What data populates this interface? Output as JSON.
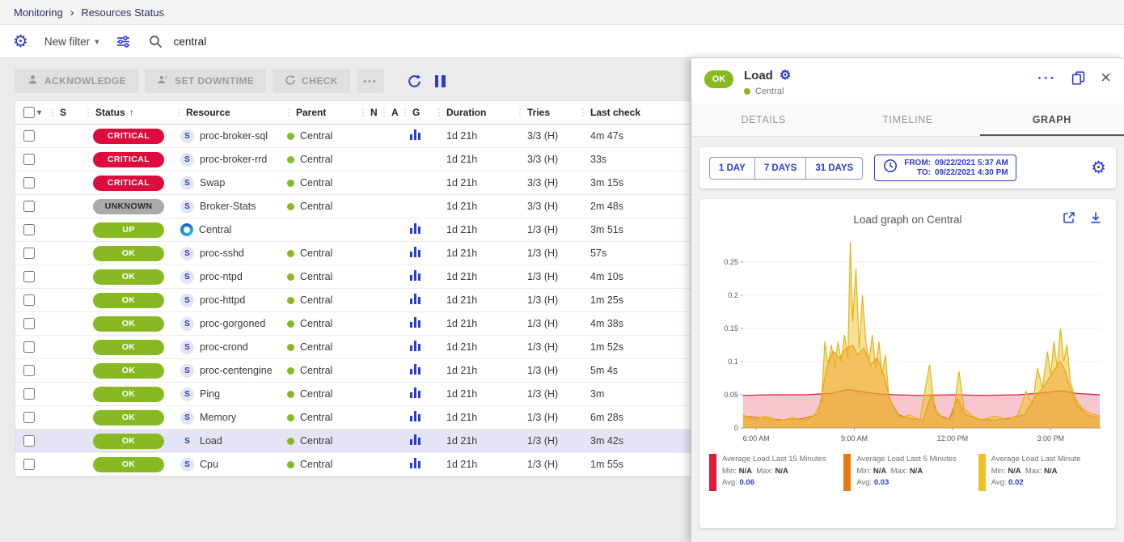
{
  "breadcrumb": {
    "section": "Monitoring",
    "page": "Resources Status"
  },
  "filter_bar": {
    "new_filter_label": "New filter",
    "search_value": "central"
  },
  "toolbar": {
    "acknowledge_label": "ACKNOWLEDGE",
    "set_downtime_label": "SET DOWNTIME",
    "check_label": "CHECK",
    "more_label": "···"
  },
  "colors": {
    "accent": "#2c3ccc",
    "ok_green": "#88b922",
    "critical_red": "#e00b3d",
    "unknown_gray": "#aaaaaa",
    "selected_row": "#e4e4f6"
  },
  "table": {
    "columns": [
      {
        "label": "S"
      },
      {
        "label": "Status",
        "sorted": true
      },
      {
        "label": "Resource"
      },
      {
        "label": "Parent"
      },
      {
        "label": "N"
      },
      {
        "label": "A"
      },
      {
        "label": "G"
      },
      {
        "label": "Duration"
      },
      {
        "label": "Tries"
      },
      {
        "label": "Last check"
      }
    ],
    "rows": [
      {
        "status": "CRITICAL",
        "status_type": "critical",
        "resource_type": "service",
        "resource": "proc-broker-sql",
        "parent": "Central",
        "graph": true,
        "duration": "1d 21h",
        "tries": "3/3 (H)",
        "last_check": "4m 47s",
        "selected": false
      },
      {
        "status": "CRITICAL",
        "status_type": "critical",
        "resource_type": "service",
        "resource": "proc-broker-rrd",
        "parent": "Central",
        "graph": false,
        "duration": "1d 21h",
        "tries": "3/3 (H)",
        "last_check": "33s",
        "selected": false
      },
      {
        "status": "CRITICAL",
        "status_type": "critical",
        "resource_type": "service",
        "resource": "Swap",
        "parent": "Central",
        "graph": false,
        "duration": "1d 21h",
        "tries": "3/3 (H)",
        "last_check": "3m 15s",
        "selected": false
      },
      {
        "status": "UNKNOWN",
        "status_type": "unknown",
        "resource_type": "service",
        "resource": "Broker-Stats",
        "parent": "Central",
        "graph": false,
        "duration": "1d 21h",
        "tries": "3/3 (H)",
        "last_check": "2m 48s",
        "selected": false
      },
      {
        "status": "UP",
        "status_type": "up",
        "resource_type": "host",
        "resource": "Central",
        "parent": "",
        "graph": true,
        "duration": "1d 21h",
        "tries": "1/3 (H)",
        "last_check": "3m 51s",
        "selected": false
      },
      {
        "status": "OK",
        "status_type": "ok",
        "resource_type": "service",
        "resource": "proc-sshd",
        "parent": "Central",
        "graph": true,
        "duration": "1d 21h",
        "tries": "1/3 (H)",
        "last_check": "57s",
        "selected": false
      },
      {
        "status": "OK",
        "status_type": "ok",
        "resource_type": "service",
        "resource": "proc-ntpd",
        "parent": "Central",
        "graph": true,
        "duration": "1d 21h",
        "tries": "1/3 (H)",
        "last_check": "4m 10s",
        "selected": false
      },
      {
        "status": "OK",
        "status_type": "ok",
        "resource_type": "service",
        "resource": "proc-httpd",
        "parent": "Central",
        "graph": true,
        "duration": "1d 21h",
        "tries": "1/3 (H)",
        "last_check": "1m 25s",
        "selected": false
      },
      {
        "status": "OK",
        "status_type": "ok",
        "resource_type": "service",
        "resource": "proc-gorgoned",
        "parent": "Central",
        "graph": true,
        "duration": "1d 21h",
        "tries": "1/3 (H)",
        "last_check": "4m 38s",
        "selected": false
      },
      {
        "status": "OK",
        "status_type": "ok",
        "resource_type": "service",
        "resource": "proc-crond",
        "parent": "Central",
        "graph": true,
        "duration": "1d 21h",
        "tries": "1/3 (H)",
        "last_check": "1m 52s",
        "selected": false
      },
      {
        "status": "OK",
        "status_type": "ok",
        "resource_type": "service",
        "resource": "proc-centengine",
        "parent": "Central",
        "graph": true,
        "duration": "1d 21h",
        "tries": "1/3 (H)",
        "last_check": "5m 4s",
        "selected": false
      },
      {
        "status": "OK",
        "status_type": "ok",
        "resource_type": "service",
        "resource": "Ping",
        "parent": "Central",
        "graph": true,
        "duration": "1d 21h",
        "tries": "1/3 (H)",
        "last_check": "3m",
        "selected": false
      },
      {
        "status": "OK",
        "status_type": "ok",
        "resource_type": "service",
        "resource": "Memory",
        "parent": "Central",
        "graph": true,
        "duration": "1d 21h",
        "tries": "1/3 (H)",
        "last_check": "6m 28s",
        "selected": false
      },
      {
        "status": "OK",
        "status_type": "ok",
        "resource_type": "service",
        "resource": "Load",
        "parent": "Central",
        "graph": true,
        "duration": "1d 21h",
        "tries": "1/3 (H)",
        "last_check": "3m 42s",
        "selected": true
      },
      {
        "status": "OK",
        "status_type": "ok",
        "resource_type": "service",
        "resource": "Cpu",
        "parent": "Central",
        "graph": true,
        "duration": "1d 21h",
        "tries": "1/3 (H)",
        "last_check": "1m 55s",
        "selected": false
      }
    ]
  },
  "panel": {
    "status": "OK",
    "title": "Load",
    "parent": "Central",
    "more_label": "···",
    "tabs": [
      {
        "label": "DETAILS",
        "active": false
      },
      {
        "label": "TIMELINE",
        "active": false
      },
      {
        "label": "GRAPH",
        "active": true
      }
    ],
    "time_buttons": [
      "1 DAY",
      "7 DAYS",
      "31 DAYS"
    ],
    "from_label": "FROM:",
    "from_value": "09/22/2021 5:37 AM",
    "to_label": "TO:",
    "to_value": "09/22/2021 4:30 PM",
    "graph_title": "Load graph on Central",
    "legend": [
      {
        "name": "Average Load Last 15 Minutes",
        "color": "#e01b3c",
        "min_label": "Min:",
        "min": "N/A",
        "max_label": "Max:",
        "max": "N/A",
        "avg_label": "Avg:",
        "avg": "0.06"
      },
      {
        "name": "Average Load Last 5 Minutes",
        "color": "#e87a0d",
        "min_label": "Min:",
        "min": "N/A",
        "max_label": "Max:",
        "max": "N/A",
        "avg_label": "Avg:",
        "avg": "0.03"
      },
      {
        "name": "Average Load Last Minute",
        "color": "#eec12c",
        "min_label": "Min:",
        "min": "N/A",
        "max_label": "Max:",
        "max": "N/A",
        "avg_label": "Avg:",
        "avg": "0.02"
      }
    ]
  },
  "chart_data": {
    "type": "area",
    "title": "Load graph on Central",
    "xlabel": "",
    "ylabel": "",
    "x_range": [
      5.6,
      16.55
    ],
    "ylim": [
      0,
      0.29
    ],
    "y_ticks": [
      0,
      0.05,
      0.1,
      0.15,
      0.2,
      0.25
    ],
    "x_ticks": [
      "6:00 AM",
      "9:00 AM",
      "12:00 PM",
      "3:00 PM"
    ],
    "x_tick_hours": [
      6,
      9,
      12,
      15
    ],
    "grid": false,
    "legend_position": "bottom",
    "series": [
      {
        "name": "Average Load Last 15 Minutes",
        "color": "#e01b3c",
        "fill": "rgba(224,27,60,0.25)",
        "points": [
          [
            5.6,
            0.049
          ],
          [
            6.5,
            0.05
          ],
          [
            7.5,
            0.05
          ],
          [
            8.3,
            0.052
          ],
          [
            8.8,
            0.058
          ],
          [
            9.2,
            0.055
          ],
          [
            9.6,
            0.052
          ],
          [
            10.2,
            0.05
          ],
          [
            11,
            0.049
          ],
          [
            12,
            0.05
          ],
          [
            13,
            0.049
          ],
          [
            14,
            0.05
          ],
          [
            14.8,
            0.053
          ],
          [
            15.3,
            0.056
          ],
          [
            15.8,
            0.052
          ],
          [
            16.5,
            0.05
          ]
        ]
      },
      {
        "name": "Average Load Last 5 Minutes",
        "color": "#e87a0d",
        "fill": "rgba(232,122,13,0.45)",
        "points": [
          [
            5.6,
            0.018
          ],
          [
            6.2,
            0.015
          ],
          [
            6.8,
            0.012
          ],
          [
            7.4,
            0.014
          ],
          [
            7.9,
            0.02
          ],
          [
            8.15,
            0.09
          ],
          [
            8.35,
            0.115
          ],
          [
            8.55,
            0.105
          ],
          [
            8.75,
            0.12
          ],
          [
            8.95,
            0.125
          ],
          [
            9.1,
            0.11
          ],
          [
            9.3,
            0.12
          ],
          [
            9.5,
            0.095
          ],
          [
            9.7,
            0.105
          ],
          [
            9.9,
            0.08
          ],
          [
            10.1,
            0.04
          ],
          [
            10.35,
            0.02
          ],
          [
            10.7,
            0.014
          ],
          [
            11.1,
            0.012
          ],
          [
            11.35,
            0.05
          ],
          [
            11.55,
            0.02
          ],
          [
            11.9,
            0.013
          ],
          [
            12.15,
            0.045
          ],
          [
            12.4,
            0.02
          ],
          [
            12.8,
            0.013
          ],
          [
            13.3,
            0.012
          ],
          [
            13.8,
            0.015
          ],
          [
            14.2,
            0.02
          ],
          [
            14.5,
            0.045
          ],
          [
            14.75,
            0.06
          ],
          [
            14.95,
            0.075
          ],
          [
            15.15,
            0.09
          ],
          [
            15.3,
            0.1
          ],
          [
            15.45,
            0.085
          ],
          [
            15.6,
            0.06
          ],
          [
            15.8,
            0.035
          ],
          [
            16.1,
            0.02
          ],
          [
            16.5,
            0.015
          ]
        ]
      },
      {
        "name": "Average Load Last Minute",
        "color": "#e5b312",
        "fill": "rgba(238,193,44,0.5)",
        "points": [
          [
            5.6,
            0.02
          ],
          [
            5.9,
            0.012
          ],
          [
            6.3,
            0.018
          ],
          [
            6.7,
            0.01
          ],
          [
            7.1,
            0.016
          ],
          [
            7.5,
            0.01
          ],
          [
            7.8,
            0.02
          ],
          [
            8.0,
            0.04
          ],
          [
            8.1,
            0.13
          ],
          [
            8.2,
            0.095
          ],
          [
            8.3,
            0.125
          ],
          [
            8.4,
            0.09
          ],
          [
            8.5,
            0.13
          ],
          [
            8.6,
            0.1
          ],
          [
            8.7,
            0.14
          ],
          [
            8.8,
            0.105
          ],
          [
            8.88,
            0.28
          ],
          [
            8.95,
            0.16
          ],
          [
            9.05,
            0.24
          ],
          [
            9.15,
            0.12
          ],
          [
            9.25,
            0.2
          ],
          [
            9.35,
            0.13
          ],
          [
            9.45,
            0.1
          ],
          [
            9.55,
            0.14
          ],
          [
            9.65,
            0.09
          ],
          [
            9.75,
            0.13
          ],
          [
            9.85,
            0.08
          ],
          [
            9.95,
            0.11
          ],
          [
            10.05,
            0.05
          ],
          [
            10.2,
            0.03
          ],
          [
            10.4,
            0.015
          ],
          [
            10.7,
            0.02
          ],
          [
            11.0,
            0.012
          ],
          [
            11.3,
            0.095
          ],
          [
            11.45,
            0.03
          ],
          [
            11.7,
            0.015
          ],
          [
            12.0,
            0.012
          ],
          [
            12.2,
            0.085
          ],
          [
            12.35,
            0.03
          ],
          [
            12.6,
            0.018
          ],
          [
            12.9,
            0.012
          ],
          [
            13.3,
            0.018
          ],
          [
            13.7,
            0.012
          ],
          [
            14.0,
            0.02
          ],
          [
            14.25,
            0.055
          ],
          [
            14.45,
            0.035
          ],
          [
            14.6,
            0.09
          ],
          [
            14.75,
            0.06
          ],
          [
            14.9,
            0.115
          ],
          [
            15.0,
            0.08
          ],
          [
            15.1,
            0.13
          ],
          [
            15.2,
            0.09
          ],
          [
            15.3,
            0.15
          ],
          [
            15.4,
            0.1
          ],
          [
            15.5,
            0.125
          ],
          [
            15.6,
            0.07
          ],
          [
            15.75,
            0.045
          ],
          [
            15.95,
            0.03
          ],
          [
            16.2,
            0.022
          ],
          [
            16.5,
            0.018
          ]
        ]
      }
    ]
  }
}
